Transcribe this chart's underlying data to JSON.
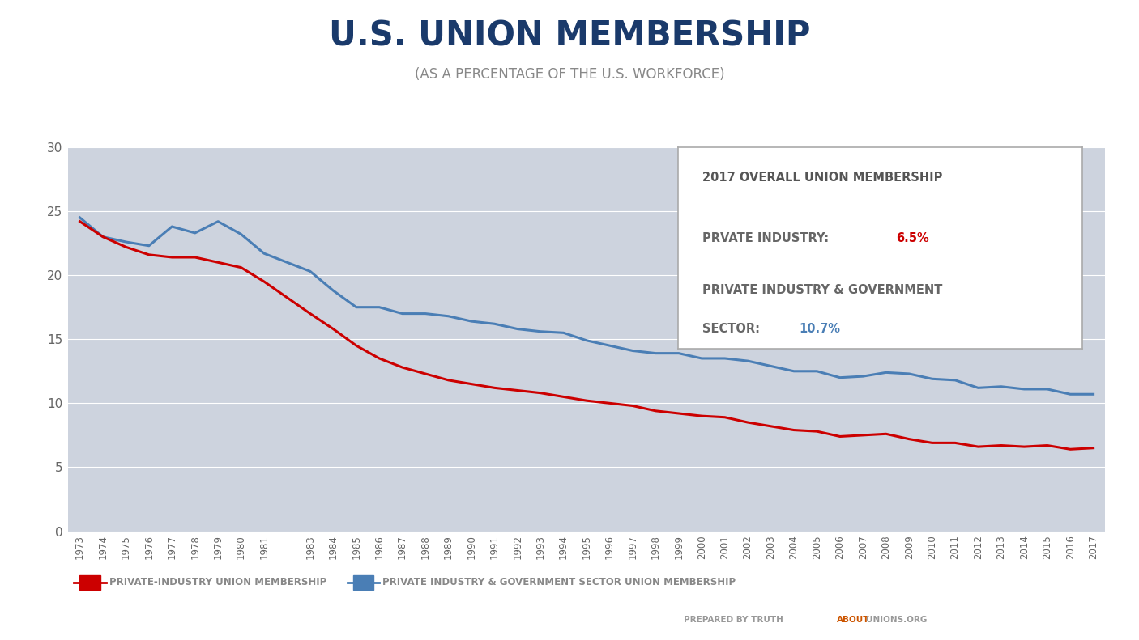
{
  "title": "U.S. UNION MEMBERSHIP",
  "subtitle": "(AS A PERCENTAGE OF THE U.S. WORKFORCE)",
  "title_color": "#1a3a6b",
  "subtitle_color": "#888888",
  "background_color": "#ffffff",
  "plot_bg_color": "#cdd3de",
  "years": [
    1973,
    1974,
    1975,
    1976,
    1977,
    1978,
    1979,
    1980,
    1981,
    1983,
    1984,
    1985,
    1986,
    1987,
    1988,
    1989,
    1990,
    1991,
    1992,
    1993,
    1994,
    1995,
    1996,
    1997,
    1998,
    1999,
    2000,
    2001,
    2002,
    2003,
    2004,
    2005,
    2006,
    2007,
    2008,
    2009,
    2010,
    2011,
    2012,
    2013,
    2014,
    2015,
    2016,
    2017
  ],
  "private_industry": [
    24.2,
    23.0,
    22.2,
    21.6,
    21.4,
    21.4,
    21.0,
    20.6,
    19.5,
    17.0,
    15.8,
    14.5,
    13.5,
    12.8,
    12.3,
    11.8,
    11.5,
    11.2,
    11.0,
    10.8,
    10.5,
    10.2,
    10.0,
    9.8,
    9.4,
    9.2,
    9.0,
    8.9,
    8.5,
    8.2,
    7.9,
    7.8,
    7.4,
    7.5,
    7.6,
    7.2,
    6.9,
    6.9,
    6.6,
    6.7,
    6.6,
    6.7,
    6.4,
    6.5
  ],
  "private_and_govt": [
    24.5,
    23.0,
    22.6,
    22.3,
    23.8,
    23.3,
    24.2,
    23.2,
    21.7,
    20.3,
    18.8,
    17.5,
    17.5,
    17.0,
    17.0,
    16.8,
    16.4,
    16.2,
    15.8,
    15.6,
    15.5,
    14.9,
    14.5,
    14.1,
    13.9,
    13.9,
    13.5,
    13.5,
    13.3,
    12.9,
    12.5,
    12.5,
    12.0,
    12.1,
    12.4,
    12.3,
    11.9,
    11.8,
    11.2,
    11.3,
    11.1,
    11.1,
    10.7,
    10.7
  ],
  "private_color": "#cc0000",
  "govt_color": "#4a7eb5",
  "ylim": [
    0,
    30
  ],
  "yticks": [
    0,
    5,
    10,
    15,
    20,
    25,
    30
  ],
  "legend_label_private": "PRIVATE-INDUSTRY UNION MEMBERSHIP",
  "legend_label_govt": "PRIVATE INDUSTRY & GOVERNMENT SECTOR UNION MEMBERSHIP",
  "box_title": "2017 OVERALL UNION MEMBERSHIP",
  "box_private_label": "PRVATE INDUSTRY:",
  "box_private_value": "6.5%",
  "box_govt_line1": "PRIVATE INDUSTRY & GOVERNMENT",
  "box_govt_line2": "SECTOR:",
  "box_govt_value": "10.7%",
  "box_private_value_color": "#cc0000",
  "box_govt_value_color": "#4a7eb5",
  "box_text_color": "#666666",
  "box_title_color": "#555555",
  "footer_prepared": "PREPARED BY TRUTH",
  "footer_about": "ABOUT",
  "footer_unions": "UNIONS.ORG",
  "footer_color": "#999999",
  "footer_about_color": "#cc5500"
}
